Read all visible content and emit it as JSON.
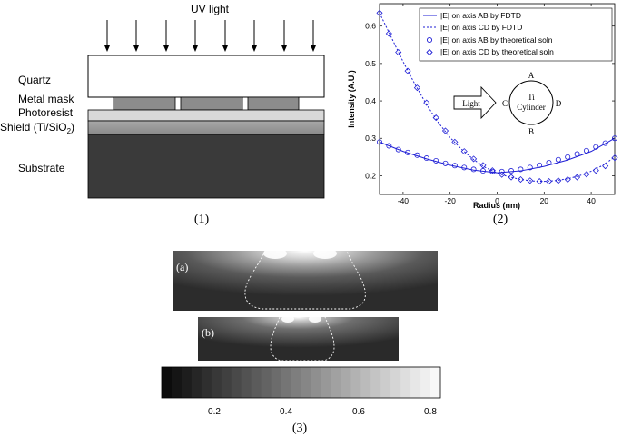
{
  "panel1": {
    "uv_label": "UV light",
    "layers": [
      {
        "key": "quartz",
        "label": "Quartz"
      },
      {
        "key": "mask",
        "label": "Metal mask"
      },
      {
        "key": "photoresist",
        "label": "Photoresist"
      },
      {
        "key": "shield",
        "label": "Shield (Ti/SiO",
        "sub": "2",
        "tail": ")"
      },
      {
        "key": "substrate",
        "label": "Substrate"
      }
    ],
    "caption": "(1)"
  },
  "panel2": {
    "caption": "(2)",
    "inset": {
      "light": "Light",
      "A": "A",
      "B": "B",
      "C": "C",
      "D": "D",
      "cyl1": "Ti",
      "cyl2": "Cylinder"
    }
  },
  "chart_data": {
    "type": "line",
    "xlabel": "Radius (nm)",
    "ylabel": "Intensity (A.U.)",
    "xlim": [
      -50,
      50
    ],
    "ylim": [
      0.15,
      0.66
    ],
    "xticks": [
      -40,
      -20,
      0,
      20,
      40
    ],
    "yticks": [
      0.2,
      0.3,
      0.4,
      0.5,
      0.6
    ],
    "legend_position": "top-right",
    "series": [
      {
        "name": "|E| on axis AB by FDTD",
        "style": "solid",
        "x": [
          -50,
          -40,
          -30,
          -20,
          -10,
          0,
          10,
          20,
          30,
          40,
          50
        ],
        "y": [
          0.29,
          0.265,
          0.245,
          0.228,
          0.215,
          0.208,
          0.213,
          0.225,
          0.242,
          0.265,
          0.3
        ]
      },
      {
        "name": "|E| on axis CD by FDTD",
        "style": "dotted",
        "x": [
          -50,
          -45,
          -40,
          -35,
          -30,
          -25,
          -20,
          -15,
          -10,
          -5,
          0,
          5,
          10,
          15,
          20,
          25,
          30,
          35,
          40,
          45,
          50
        ],
        "y": [
          0.635,
          0.57,
          0.505,
          0.445,
          0.39,
          0.342,
          0.302,
          0.27,
          0.243,
          0.222,
          0.207,
          0.197,
          0.19,
          0.186,
          0.185,
          0.187,
          0.192,
          0.2,
          0.212,
          0.228,
          0.25
        ]
      },
      {
        "name": "|E| on axis AB by theoretical soln",
        "style": "circle",
        "x": [
          -50,
          -46,
          -42,
          -38,
          -34,
          -30,
          -26,
          -22,
          -18,
          -14,
          -10,
          -6,
          -2,
          2,
          6,
          10,
          14,
          18,
          22,
          26,
          30,
          34,
          38,
          42,
          46,
          50
        ],
        "y": [
          0.29,
          0.28,
          0.27,
          0.262,
          0.255,
          0.247,
          0.24,
          0.233,
          0.227,
          0.222,
          0.217,
          0.213,
          0.211,
          0.211,
          0.213,
          0.217,
          0.222,
          0.228,
          0.235,
          0.243,
          0.25,
          0.258,
          0.267,
          0.277,
          0.287,
          0.3
        ]
      },
      {
        "name": "|E| on axis CD by theoretical soln",
        "style": "diamond",
        "x": [
          -50,
          -46,
          -42,
          -38,
          -34,
          -30,
          -26,
          -22,
          -18,
          -14,
          -10,
          -6,
          -2,
          2,
          6,
          10,
          14,
          18,
          22,
          26,
          30,
          34,
          38,
          42,
          46,
          50
        ],
        "y": [
          0.635,
          0.58,
          0.53,
          0.48,
          0.435,
          0.395,
          0.355,
          0.32,
          0.29,
          0.265,
          0.245,
          0.228,
          0.214,
          0.203,
          0.196,
          0.19,
          0.187,
          0.185,
          0.185,
          0.187,
          0.19,
          0.196,
          0.204,
          0.214,
          0.226,
          0.248
        ]
      }
    ]
  },
  "panel3": {
    "label_a": "(a)",
    "label_b": "(b)",
    "colorbar_ticks": [
      "0.2",
      "0.4",
      "0.6",
      "0.8"
    ],
    "caption": "(3)"
  }
}
